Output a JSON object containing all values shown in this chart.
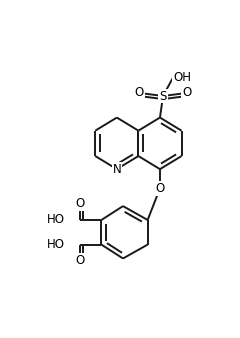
{
  "figsize": [
    2.4,
    3.38
  ],
  "dpi": 100,
  "bg_color": "#ffffff",
  "line_color": "#1a1a1a",
  "line_width": 1.4,
  "font_size": 8.5,
  "xlim": [
    0,
    240
  ],
  "ylim": [
    0,
    338
  ]
}
